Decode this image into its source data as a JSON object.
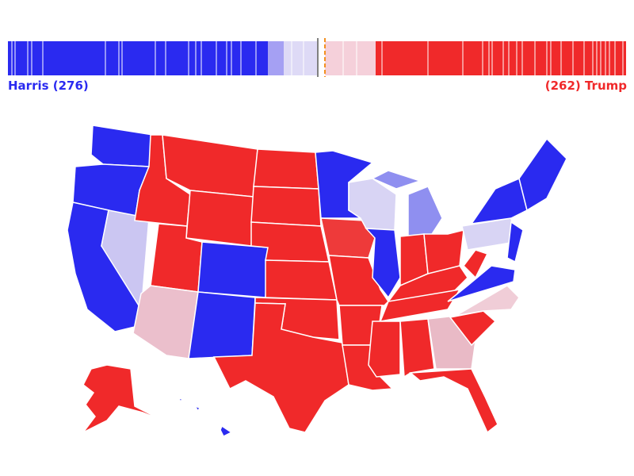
{
  "left_label": "Harris (276)",
  "right_label": "(262) Trump"
}
